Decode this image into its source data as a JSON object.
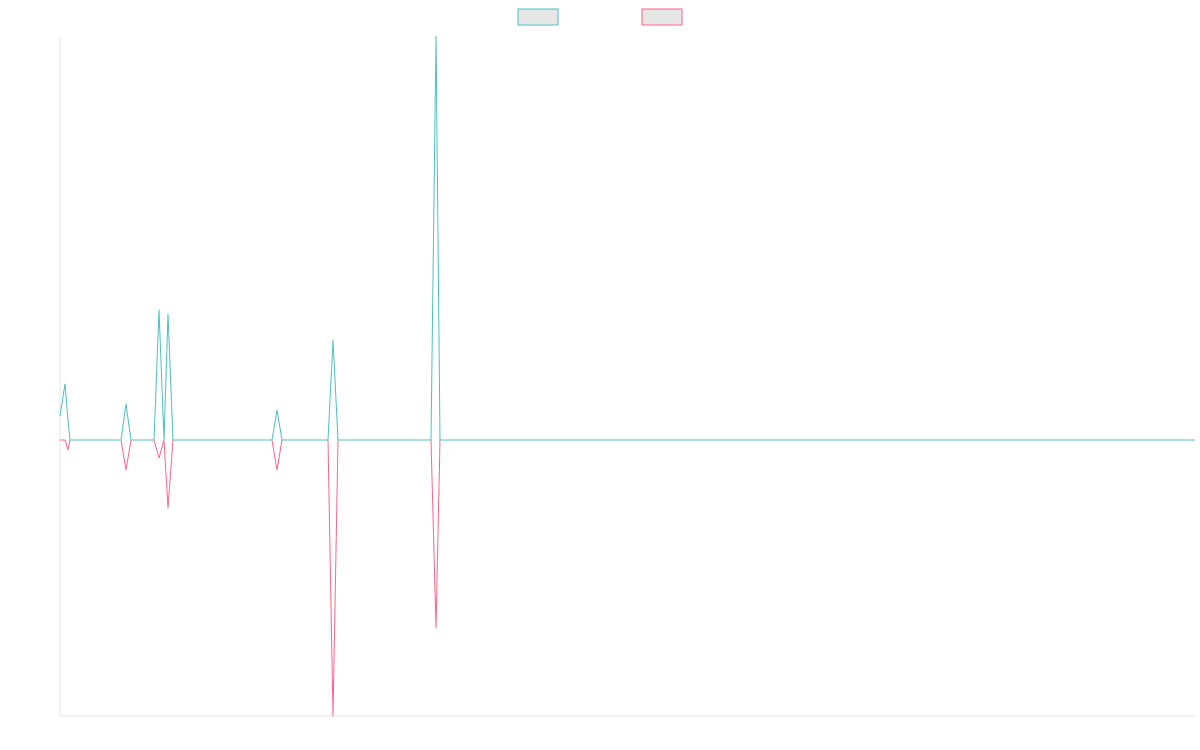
{
  "chart_data": {
    "type": "line",
    "x": [
      0,
      5,
      8,
      10,
      61,
      66,
      71,
      83,
      94,
      99,
      104,
      108,
      113,
      125,
      212,
      217,
      222,
      268,
      273,
      278,
      371,
      376,
      380,
      1135
    ],
    "series": [
      {
        "color": "#4bc0c0",
        "values": [
          6,
          14,
          5,
          0,
          0,
          9,
          0,
          0,
          0,
          32.5,
          0,
          31.5,
          0,
          0,
          0,
          7.5,
          0,
          0,
          25,
          0,
          0,
          101,
          0,
          0
        ]
      },
      {
        "color": "#ff6384",
        "values": [
          0,
          0,
          -2.5,
          0,
          0,
          -7.5,
          0,
          0,
          0,
          -4.5,
          0,
          -17,
          0,
          0,
          0,
          -7.5,
          0,
          0,
          -69,
          0,
          0,
          -47,
          0,
          0
        ]
      }
    ],
    "xlim": [
      0,
      1135
    ],
    "ylim": [
      -69,
      101
    ],
    "legend": "top"
  }
}
